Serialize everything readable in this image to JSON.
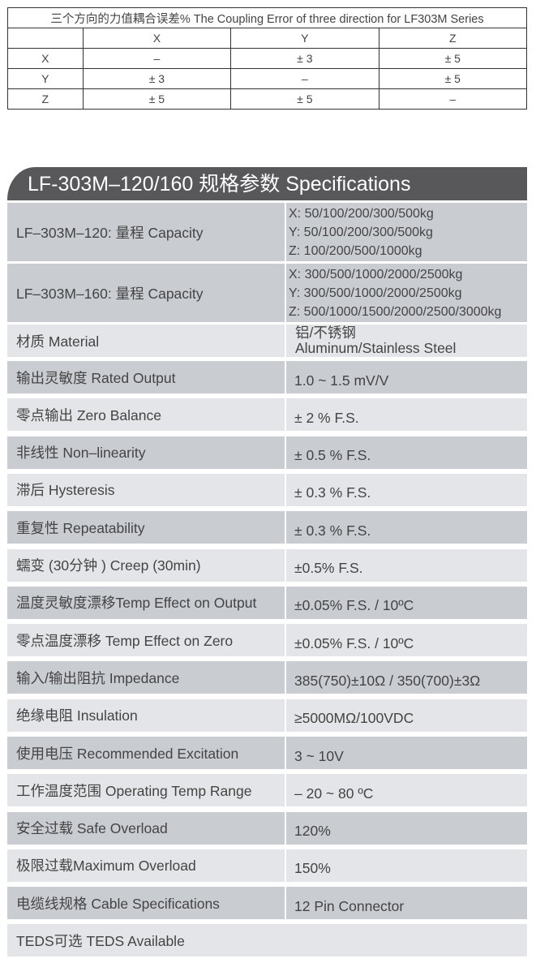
{
  "coupling_table": {
    "title": "三个方向的力值耦合误差% The Coupling Error of three direction for LF303M Series",
    "columns": [
      "",
      "X",
      "Y",
      "Z"
    ],
    "rows": [
      [
        "X",
        "–",
        "± 3",
        "± 5"
      ],
      [
        "Y",
        "± 3",
        "–",
        "± 5"
      ],
      [
        "Z",
        "± 5",
        "± 5",
        "–"
      ]
    ]
  },
  "specs": {
    "title": "LF-303M–120/160  规格参数 Specifications",
    "capacity": [
      {
        "label": "LF–303M–120: 量程 Capacity",
        "values": [
          "X: 50/100/200/300/500kg",
          "Y: 50/100/200/300/500kg",
          "Z: 100/200/500/1000kg"
        ]
      },
      {
        "label": "LF–303M–160: 量程 Capacity",
        "values": [
          "X: 300/500/1000/2000/2500kg",
          "Y: 300/500/1000/2000/2500kg",
          "Z: 500/1000/1500/2000/2500/3000kg"
        ]
      }
    ],
    "material": {
      "label": "材质 Material",
      "values": [
        "铝/不锈钢",
        "Aluminum/Stainless Steel"
      ]
    },
    "rows": [
      {
        "label": "输出灵敏度 Rated Output",
        "value": "1.0 ~ 1.5 mV/V"
      },
      {
        "label": "零点输出  Zero Balance",
        "value": "± 2 % F.S."
      },
      {
        "label": "非线性 Non–linearity",
        "value": "± 0.5 % F.S."
      },
      {
        "label": "滞后 Hysteresis",
        "value": "± 0.3 % F.S."
      },
      {
        "label": "重复性 Repeatability",
        "value": "± 0.3 % F.S."
      },
      {
        "label": "蠕变 (30分钟 ) Creep (30min)",
        "value": "±0.5% F.S."
      },
      {
        "label": "温度灵敏度漂移Temp Effect on Output",
        "value": "±0.05% F.S. / 10ºC"
      },
      {
        "label": "零点温度漂移 Temp Effect on Zero",
        "value": "±0.05% F.S. / 10ºC"
      },
      {
        "label": "输入/输出阻抗 Impedance",
        "value": "385(750)±10Ω / 350(700)±3Ω"
      },
      {
        "label": "绝缘电阻  Insulation",
        "value": "≥5000MΩ/100VDC"
      },
      {
        "label": "使用电压 Recommended Excitation",
        "value": "3 ~ 10V"
      },
      {
        "label": "工作温度范围 Operating Temp  Range",
        "value": "– 20 ~ 80 ºC"
      },
      {
        "label": "安全过载 Safe Overload",
        "value": "120%"
      },
      {
        "label": "极限过载Maximum Overload",
        "value": "150%"
      },
      {
        "label": "电缆线规格 Cable Specifications",
        "value": "12 Pin Connector"
      }
    ],
    "teds": "TEDS可选 TEDS Available"
  }
}
